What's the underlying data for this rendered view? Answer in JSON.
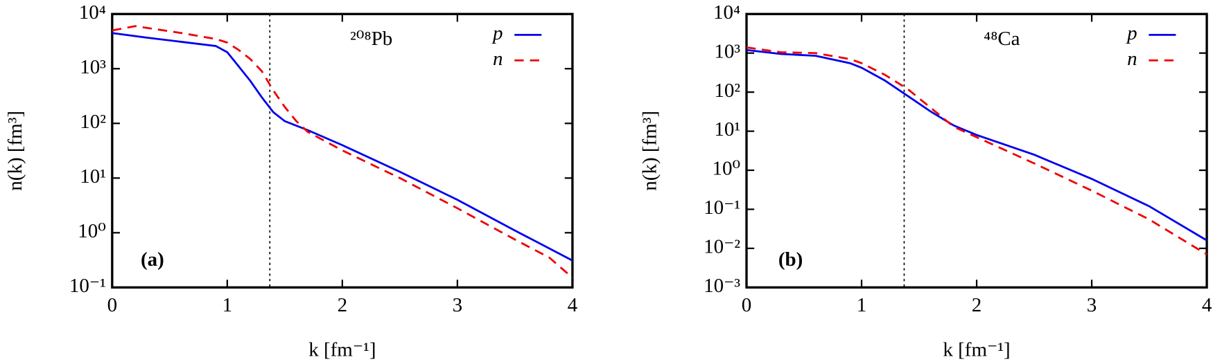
{
  "chart_data": [
    {
      "type": "line",
      "xlabel": "k [fm⁻¹]",
      "ylabel": "n(k) [fm³]",
      "xlim": [
        0,
        4
      ],
      "xticks": [
        0,
        1,
        2,
        3,
        4
      ],
      "ylim": [
        0.1,
        10000
      ],
      "log_y": true,
      "yticks": [
        {
          "value": 0.1,
          "label": "10⁻¹"
        },
        {
          "value": 1,
          "label": "10⁰"
        },
        {
          "value": 10,
          "label": "10¹"
        },
        {
          "value": 100,
          "label": "10²"
        },
        {
          "value": 1000,
          "label": "10³"
        },
        {
          "value": 10000,
          "label": "10⁴"
        }
      ],
      "annotations": [
        "²⁰⁸Pb",
        "(a)"
      ],
      "vline": 1.37,
      "legend": "upper right",
      "series": [
        {
          "name": "p",
          "color": "#0000ee",
          "dash": false,
          "x": [
            0,
            0.3,
            0.6,
            0.9,
            1.0,
            1.1,
            1.2,
            1.3,
            1.4,
            1.5,
            1.7,
            2.0,
            2.5,
            3.0,
            3.5,
            4.0
          ],
          "values": [
            4500,
            3700,
            3100,
            2600,
            2000,
            1100,
            600,
            300,
            160,
            110,
            75,
            40,
            13,
            4,
            1.1,
            0.31
          ]
        },
        {
          "name": "n",
          "color": "#ee0000",
          "dash": true,
          "x": [
            0,
            0.2,
            0.4,
            0.6,
            0.9,
            1.0,
            1.1,
            1.2,
            1.3,
            1.4,
            1.5,
            1.6,
            1.7,
            2.0,
            2.5,
            3.0,
            3.5,
            3.8,
            4.0
          ],
          "values": [
            5000,
            6000,
            5200,
            4500,
            3500,
            3000,
            2200,
            1500,
            900,
            400,
            200,
            110,
            70,
            32,
            10,
            2.8,
            0.75,
            0.35,
            0.15
          ]
        }
      ]
    },
    {
      "type": "line",
      "xlabel": "k [fm⁻¹]",
      "ylabel": "n(k) [fm³]",
      "xlim": [
        0,
        4
      ],
      "xticks": [
        0,
        1,
        2,
        3,
        4
      ],
      "ylim": [
        0.001,
        10000
      ],
      "log_y": true,
      "yticks": [
        {
          "value": 0.001,
          "label": "10⁻³"
        },
        {
          "value": 0.01,
          "label": "10⁻²"
        },
        {
          "value": 0.1,
          "label": "10⁻¹"
        },
        {
          "value": 1,
          "label": "10⁰"
        },
        {
          "value": 10,
          "label": "10¹"
        },
        {
          "value": 100,
          "label": "10²"
        },
        {
          "value": 1000,
          "label": "10³"
        },
        {
          "value": 10000,
          "label": "10⁴"
        }
      ],
      "annotations": [
        "⁴⁸Ca",
        "(b)"
      ],
      "vline": 1.37,
      "legend": "upper right",
      "series": [
        {
          "name": "p",
          "color": "#0000ee",
          "dash": false,
          "x": [
            0,
            0.3,
            0.6,
            0.9,
            1.0,
            1.2,
            1.4,
            1.6,
            1.8,
            2.0,
            2.5,
            3.0,
            3.5,
            4.0
          ],
          "values": [
            1200,
            950,
            850,
            550,
            420,
            200,
            80,
            32,
            14,
            8,
            2.5,
            0.6,
            0.12,
            0.016
          ]
        },
        {
          "name": "n",
          "color": "#ee0000",
          "dash": true,
          "x": [
            0,
            0.3,
            0.6,
            0.9,
            1.0,
            1.2,
            1.4,
            1.6,
            1.8,
            2.0,
            2.5,
            3.0,
            3.5,
            4.0
          ],
          "values": [
            1400,
            1050,
            1000,
            700,
            550,
            280,
            120,
            40,
            13,
            7,
            1.5,
            0.3,
            0.055,
            0.007
          ]
        }
      ]
    }
  ]
}
